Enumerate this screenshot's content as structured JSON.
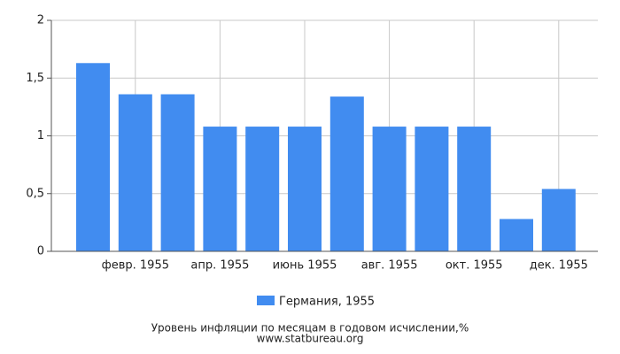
{
  "chart_data": {
    "type": "bar",
    "categories": [
      null,
      "февр. 1955",
      null,
      "апр. 1955",
      null,
      "июнь 1955",
      null,
      "авг. 1955",
      null,
      "окт. 1955",
      null,
      "дек. 1955"
    ],
    "series": [
      {
        "name": "Германия, 1955",
        "color": "#418cf0",
        "values": [
          1.63,
          1.36,
          1.36,
          1.08,
          1.08,
          1.08,
          1.34,
          1.08,
          1.08,
          1.08,
          0.28,
          0.54
        ]
      }
    ],
    "ylim": [
      0,
      2
    ],
    "yticks": [
      0,
      {
        "value": 0.5,
        "label": "0,5"
      },
      1,
      {
        "value": 1.5,
        "label": "1,5"
      },
      2
    ],
    "grid": true,
    "x_label": "Уровень инфляции по месяцам в годовом исчислении,%",
    "source": "www.statbureau.org"
  }
}
